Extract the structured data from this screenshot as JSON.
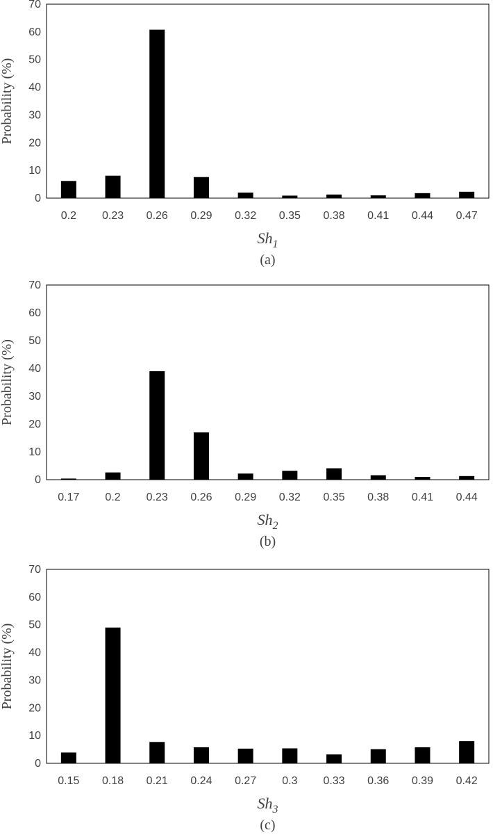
{
  "chart_data": [
    {
      "type": "bar",
      "ylabel": "Probability (%)",
      "xlabel_main": "Sh",
      "xlabel_sub": "1",
      "caption": "(a)",
      "ylim": [
        0,
        70
      ],
      "yticks": [
        "0",
        "10",
        "20",
        "30",
        "40",
        "50",
        "60",
        "70"
      ],
      "categories": [
        "0.2",
        "0.23",
        "0.26",
        "0.29",
        "0.32",
        "0.35",
        "0.38",
        "0.41",
        "0.44",
        "0.47"
      ],
      "values": [
        6.2,
        8.1,
        60.8,
        7.6,
        2.0,
        0.9,
        1.3,
        1.0,
        1.8,
        2.3
      ],
      "grid": false,
      "bar_color": "#000000"
    },
    {
      "type": "bar",
      "ylabel": "Probability (%)",
      "xlabel_main": "Sh",
      "xlabel_sub": "2",
      "caption": "(b)",
      "ylim": [
        0,
        70
      ],
      "yticks": [
        "0",
        "10",
        "20",
        "30",
        "40",
        "50",
        "60",
        "70"
      ],
      "categories": [
        "0.17",
        "0.2",
        "0.23",
        "0.26",
        "0.29",
        "0.32",
        "0.35",
        "0.38",
        "0.41",
        "0.44"
      ],
      "values": [
        0.4,
        2.6,
        39.0,
        17.0,
        2.2,
        3.2,
        4.1,
        1.6,
        1.0,
        1.3
      ],
      "grid": false,
      "bar_color": "#000000"
    },
    {
      "type": "bar",
      "ylabel": "Probability (%)",
      "xlabel_main": "Sh",
      "xlabel_sub": "3",
      "caption": "(c)",
      "ylim": [
        0,
        70
      ],
      "yticks": [
        "0",
        "10",
        "20",
        "30",
        "40",
        "50",
        "60",
        "70"
      ],
      "categories": [
        "0.15",
        "0.18",
        "0.21",
        "0.24",
        "0.27",
        "0.3",
        "0.33",
        "0.36",
        "0.39",
        "0.42"
      ],
      "values": [
        3.9,
        49.0,
        7.7,
        5.8,
        5.3,
        5.4,
        3.2,
        5.1,
        5.8,
        8.0
      ],
      "grid": false,
      "bar_color": "#000000"
    }
  ]
}
